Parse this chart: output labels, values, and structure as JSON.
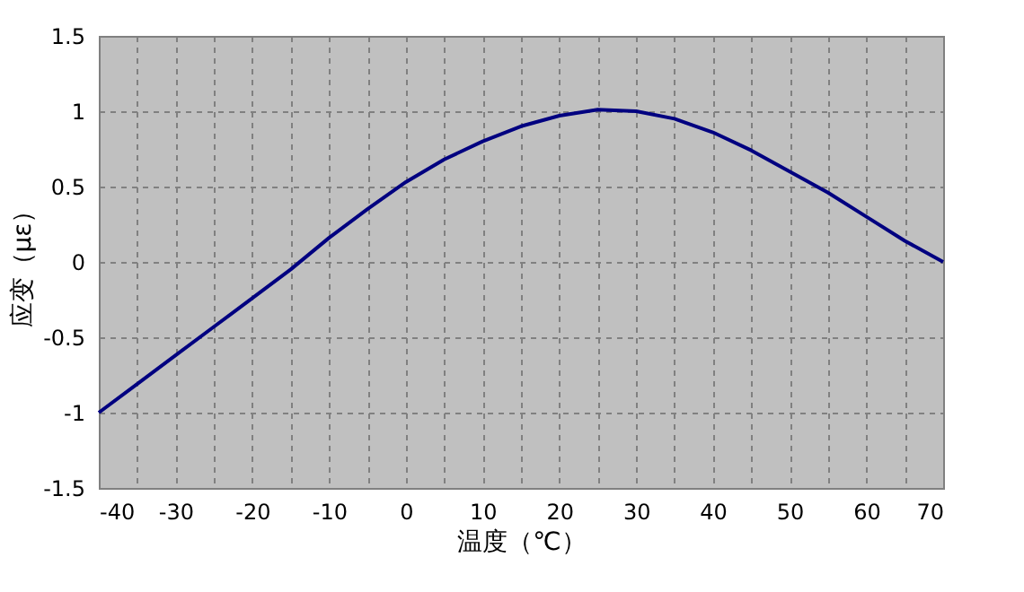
{
  "chart_data": {
    "type": "line",
    "xlabel": "温度（℃）",
    "ylabel": "应变（με）",
    "x": [
      -40,
      -35,
      -30,
      -25,
      -20,
      -15,
      -10,
      -5,
      0,
      5,
      10,
      15,
      20,
      25,
      30,
      35,
      40,
      45,
      50,
      55,
      60,
      65,
      70
    ],
    "series": [
      {
        "color": "#000080",
        "values": [
          -1,
          -0.81,
          -0.62,
          -0.43,
          -0.24,
          -0.05,
          0.16,
          0.35,
          0.53,
          0.68,
          0.8,
          0.9,
          0.97,
          1.01,
          1.0,
          0.95,
          0.86,
          0.74,
          0.6,
          0.46,
          0.3,
          0.14,
          0
        ]
      }
    ],
    "xlim": [
      -40,
      70
    ],
    "xticks": [
      -40,
      {
        "value": -35,
        "label": null
      },
      -30,
      {
        "value": -25,
        "label": null
      },
      -20,
      {
        "value": -15,
        "label": null
      },
      -10,
      {
        "value": -5,
        "label": null
      },
      0,
      {
        "value": 5,
        "label": null
      },
      10,
      {
        "value": 15,
        "label": null
      },
      20,
      {
        "value": 25,
        "label": null
      },
      30,
      {
        "value": 35,
        "label": null
      },
      40,
      {
        "value": 45,
        "label": null
      },
      50,
      {
        "value": 55,
        "label": null
      },
      60,
      {
        "value": 65,
        "label": null
      },
      70
    ],
    "ylim": [
      -1.5,
      1.5
    ],
    "yticks": [
      -1.5,
      -1,
      -0.5,
      0,
      0.5,
      1,
      1.5
    ],
    "grid": true,
    "marker": "none",
    "line_style": "solid"
  }
}
